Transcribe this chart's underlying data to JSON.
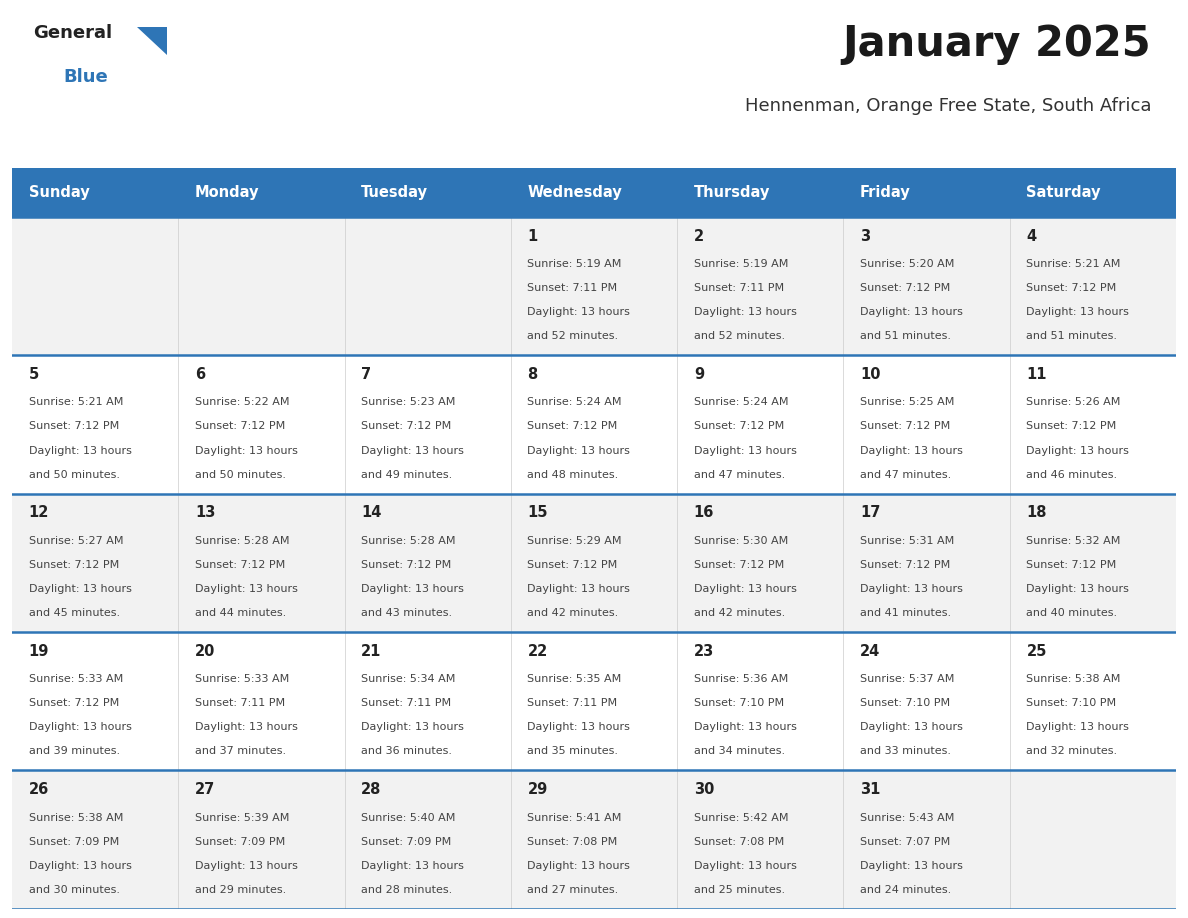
{
  "title": "January 2025",
  "subtitle": "Hennenman, Orange Free State, South Africa",
  "header_bg": "#2E75B6",
  "header_text_color": "#FFFFFF",
  "row_bg_odd": "#F2F2F2",
  "row_bg_even": "#FFFFFF",
  "separator_color": "#2E75B6",
  "day_headers": [
    "Sunday",
    "Monday",
    "Tuesday",
    "Wednesday",
    "Thursday",
    "Friday",
    "Saturday"
  ],
  "days": [
    {
      "day": null,
      "col": 0,
      "row": 0
    },
    {
      "day": null,
      "col": 1,
      "row": 0
    },
    {
      "day": null,
      "col": 2,
      "row": 0
    },
    {
      "day": 1,
      "col": 3,
      "row": 0,
      "sunrise": "5:19 AM",
      "sunset": "7:11 PM",
      "dl1": "Daylight: 13 hours",
      "dl2": "and 52 minutes."
    },
    {
      "day": 2,
      "col": 4,
      "row": 0,
      "sunrise": "5:19 AM",
      "sunset": "7:11 PM",
      "dl1": "Daylight: 13 hours",
      "dl2": "and 52 minutes."
    },
    {
      "day": 3,
      "col": 5,
      "row": 0,
      "sunrise": "5:20 AM",
      "sunset": "7:12 PM",
      "dl1": "Daylight: 13 hours",
      "dl2": "and 51 minutes."
    },
    {
      "day": 4,
      "col": 6,
      "row": 0,
      "sunrise": "5:21 AM",
      "sunset": "7:12 PM",
      "dl1": "Daylight: 13 hours",
      "dl2": "and 51 minutes."
    },
    {
      "day": 5,
      "col": 0,
      "row": 1,
      "sunrise": "5:21 AM",
      "sunset": "7:12 PM",
      "dl1": "Daylight: 13 hours",
      "dl2": "and 50 minutes."
    },
    {
      "day": 6,
      "col": 1,
      "row": 1,
      "sunrise": "5:22 AM",
      "sunset": "7:12 PM",
      "dl1": "Daylight: 13 hours",
      "dl2": "and 50 minutes."
    },
    {
      "day": 7,
      "col": 2,
      "row": 1,
      "sunrise": "5:23 AM",
      "sunset": "7:12 PM",
      "dl1": "Daylight: 13 hours",
      "dl2": "and 49 minutes."
    },
    {
      "day": 8,
      "col": 3,
      "row": 1,
      "sunrise": "5:24 AM",
      "sunset": "7:12 PM",
      "dl1": "Daylight: 13 hours",
      "dl2": "and 48 minutes."
    },
    {
      "day": 9,
      "col": 4,
      "row": 1,
      "sunrise": "5:24 AM",
      "sunset": "7:12 PM",
      "dl1": "Daylight: 13 hours",
      "dl2": "and 47 minutes."
    },
    {
      "day": 10,
      "col": 5,
      "row": 1,
      "sunrise": "5:25 AM",
      "sunset": "7:12 PM",
      "dl1": "Daylight: 13 hours",
      "dl2": "and 47 minutes."
    },
    {
      "day": 11,
      "col": 6,
      "row": 1,
      "sunrise": "5:26 AM",
      "sunset": "7:12 PM",
      "dl1": "Daylight: 13 hours",
      "dl2": "and 46 minutes."
    },
    {
      "day": 12,
      "col": 0,
      "row": 2,
      "sunrise": "5:27 AM",
      "sunset": "7:12 PM",
      "dl1": "Daylight: 13 hours",
      "dl2": "and 45 minutes."
    },
    {
      "day": 13,
      "col": 1,
      "row": 2,
      "sunrise": "5:28 AM",
      "sunset": "7:12 PM",
      "dl1": "Daylight: 13 hours",
      "dl2": "and 44 minutes."
    },
    {
      "day": 14,
      "col": 2,
      "row": 2,
      "sunrise": "5:28 AM",
      "sunset": "7:12 PM",
      "dl1": "Daylight: 13 hours",
      "dl2": "and 43 minutes."
    },
    {
      "day": 15,
      "col": 3,
      "row": 2,
      "sunrise": "5:29 AM",
      "sunset": "7:12 PM",
      "dl1": "Daylight: 13 hours",
      "dl2": "and 42 minutes."
    },
    {
      "day": 16,
      "col": 4,
      "row": 2,
      "sunrise": "5:30 AM",
      "sunset": "7:12 PM",
      "dl1": "Daylight: 13 hours",
      "dl2": "and 42 minutes."
    },
    {
      "day": 17,
      "col": 5,
      "row": 2,
      "sunrise": "5:31 AM",
      "sunset": "7:12 PM",
      "dl1": "Daylight: 13 hours",
      "dl2": "and 41 minutes."
    },
    {
      "day": 18,
      "col": 6,
      "row": 2,
      "sunrise": "5:32 AM",
      "sunset": "7:12 PM",
      "dl1": "Daylight: 13 hours",
      "dl2": "and 40 minutes."
    },
    {
      "day": 19,
      "col": 0,
      "row": 3,
      "sunrise": "5:33 AM",
      "sunset": "7:12 PM",
      "dl1": "Daylight: 13 hours",
      "dl2": "and 39 minutes."
    },
    {
      "day": 20,
      "col": 1,
      "row": 3,
      "sunrise": "5:33 AM",
      "sunset": "7:11 PM",
      "dl1": "Daylight: 13 hours",
      "dl2": "and 37 minutes."
    },
    {
      "day": 21,
      "col": 2,
      "row": 3,
      "sunrise": "5:34 AM",
      "sunset": "7:11 PM",
      "dl1": "Daylight: 13 hours",
      "dl2": "and 36 minutes."
    },
    {
      "day": 22,
      "col": 3,
      "row": 3,
      "sunrise": "5:35 AM",
      "sunset": "7:11 PM",
      "dl1": "Daylight: 13 hours",
      "dl2": "and 35 minutes."
    },
    {
      "day": 23,
      "col": 4,
      "row": 3,
      "sunrise": "5:36 AM",
      "sunset": "7:10 PM",
      "dl1": "Daylight: 13 hours",
      "dl2": "and 34 minutes."
    },
    {
      "day": 24,
      "col": 5,
      "row": 3,
      "sunrise": "5:37 AM",
      "sunset": "7:10 PM",
      "dl1": "Daylight: 13 hours",
      "dl2": "and 33 minutes."
    },
    {
      "day": 25,
      "col": 6,
      "row": 3,
      "sunrise": "5:38 AM",
      "sunset": "7:10 PM",
      "dl1": "Daylight: 13 hours",
      "dl2": "and 32 minutes."
    },
    {
      "day": 26,
      "col": 0,
      "row": 4,
      "sunrise": "5:38 AM",
      "sunset": "7:09 PM",
      "dl1": "Daylight: 13 hours",
      "dl2": "and 30 minutes."
    },
    {
      "day": 27,
      "col": 1,
      "row": 4,
      "sunrise": "5:39 AM",
      "sunset": "7:09 PM",
      "dl1": "Daylight: 13 hours",
      "dl2": "and 29 minutes."
    },
    {
      "day": 28,
      "col": 2,
      "row": 4,
      "sunrise": "5:40 AM",
      "sunset": "7:09 PM",
      "dl1": "Daylight: 13 hours",
      "dl2": "and 28 minutes."
    },
    {
      "day": 29,
      "col": 3,
      "row": 4,
      "sunrise": "5:41 AM",
      "sunset": "7:08 PM",
      "dl1": "Daylight: 13 hours",
      "dl2": "and 27 minutes."
    },
    {
      "day": 30,
      "col": 4,
      "row": 4,
      "sunrise": "5:42 AM",
      "sunset": "7:08 PM",
      "dl1": "Daylight: 13 hours",
      "dl2": "and 25 minutes."
    },
    {
      "day": 31,
      "col": 5,
      "row": 4,
      "sunrise": "5:43 AM",
      "sunset": "7:07 PM",
      "dl1": "Daylight: 13 hours",
      "dl2": "and 24 minutes."
    },
    {
      "day": null,
      "col": 6,
      "row": 4
    }
  ],
  "logo_general_color": "#222222",
  "logo_blue_color": "#2E75B6",
  "logo_triangle_color": "#2E75B6"
}
